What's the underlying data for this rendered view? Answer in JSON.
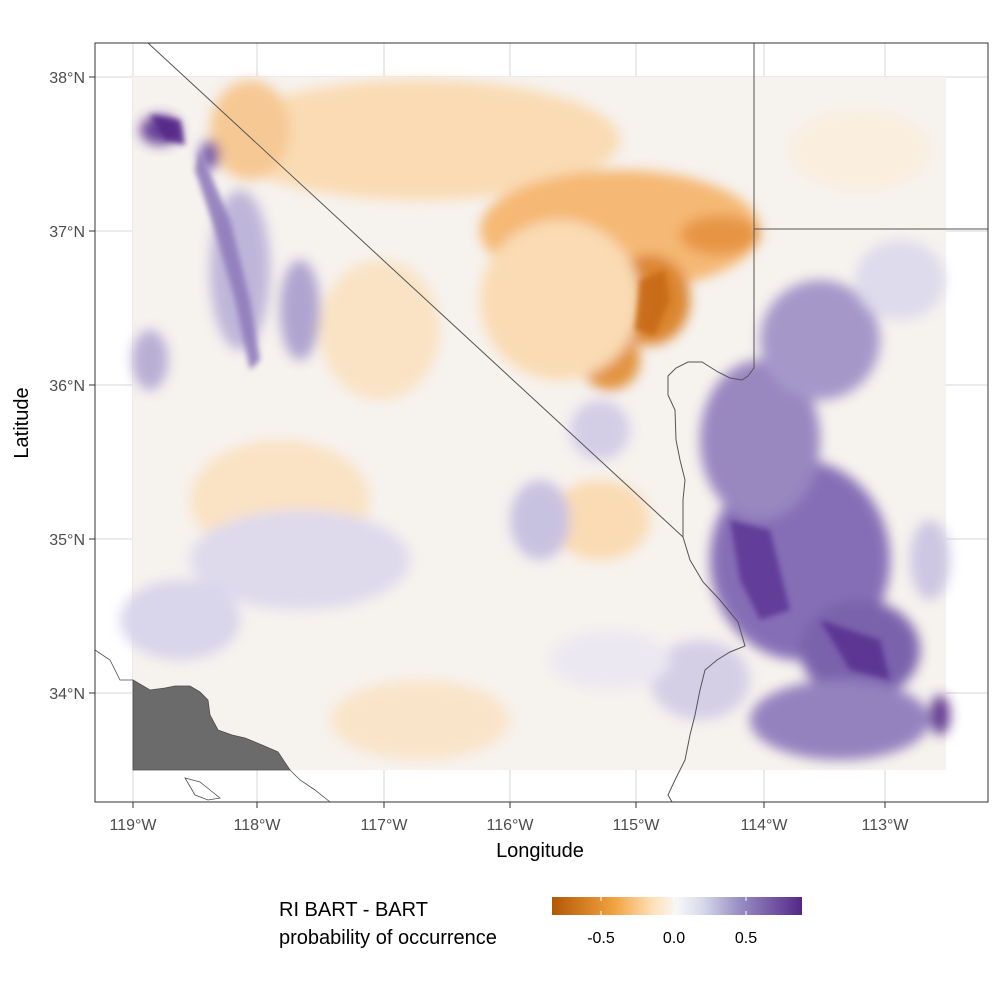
{
  "plot": {
    "x_axis_title": "Longitude",
    "y_axis_title": "Latitude",
    "x_ticks": [
      "119°W",
      "118°W",
      "117°W",
      "116°W",
      "115°W",
      "114°W",
      "113°W"
    ],
    "y_ticks": [
      "38°N",
      "37°N",
      "36°N",
      "35°N",
      "34°N"
    ]
  },
  "legend": {
    "title_line1": "RI BART - BART",
    "title_line2": "probability of occurrence",
    "ticks": [
      "-0.5",
      "0.0",
      "0.5"
    ],
    "colors": {
      "negative": "#b35806",
      "neutral": "#f7f7f7",
      "positive": "#542788"
    }
  },
  "chart_data": {
    "type": "heatmap",
    "x_range": [
      -119.3,
      -112.2
    ],
    "y_range": [
      33.3,
      38.2
    ],
    "data_extent": {
      "lon": [
        -119.0,
        -112.5
      ],
      "lat": [
        33.5,
        38.0
      ]
    },
    "value_range": [
      -0.8,
      0.8
    ],
    "legend_ticks": [
      -0.5,
      0.0,
      0.5
    ],
    "legend_position": "bottom",
    "grid": true,
    "colors": {
      "negative": "#b35806",
      "neutral": "#f7f7f7",
      "positive": "#542788",
      "ocean_mask": "#6b6b6b"
    }
  }
}
